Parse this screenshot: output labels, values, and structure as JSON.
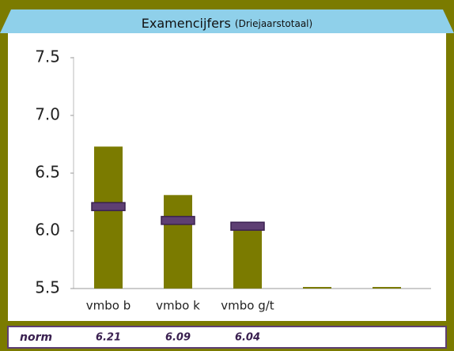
{
  "chart_data": {
    "type": "bar",
    "title": "Examencijfers",
    "subtitle": "(Driejaarstotaal)",
    "categories": [
      "vmbo b",
      "vmbo k",
      "vmbo g/t",
      null,
      null
    ],
    "values": [
      6.73,
      6.31,
      6.07,
      5.5,
      5.5
    ],
    "color": "#7b7b00",
    "norm": {
      "label": "norm",
      "values": [
        6.21,
        6.09,
        6.04,
        null,
        null
      ],
      "color": "#5e3f73"
    },
    "ylim": [
      5.5,
      7.5
    ],
    "yticks": [
      5.5,
      {
        "value": 6,
        "label": "6.0"
      },
      6.5,
      {
        "value": 7,
        "label": "7.0"
      },
      7.5
    ]
  }
}
